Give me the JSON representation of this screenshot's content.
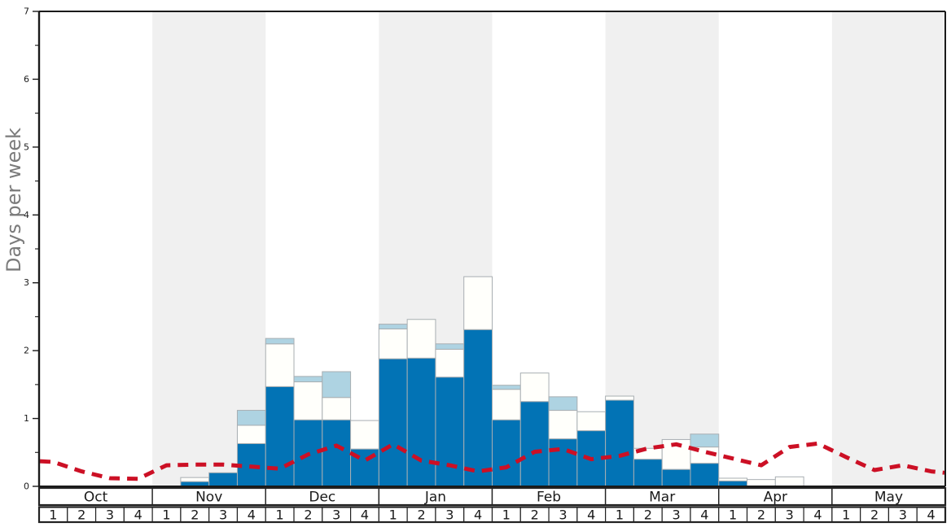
{
  "chart_data": {
    "type": "bar",
    "title": "",
    "ylabel": "Days per week",
    "ylim": [
      0,
      7
    ],
    "y_tick_labels": [
      "0",
      "1",
      "2",
      "3",
      "4",
      "5",
      "6",
      "7"
    ],
    "y_minor_step": 0.5,
    "grid": false,
    "legend": "none",
    "months": [
      "Oct",
      "Nov",
      "Dec",
      "Jan",
      "Feb",
      "Mar",
      "Apr",
      "May"
    ],
    "weeks_per_month": [
      "1",
      "2",
      "3",
      "4"
    ],
    "shaded_months": [
      "Nov",
      "Jan",
      "Mar",
      "May"
    ],
    "categories": [
      "Oct1",
      "Oct2",
      "Oct3",
      "Oct4",
      "Nov1",
      "Nov2",
      "Nov3",
      "Nov4",
      "Dec1",
      "Dec2",
      "Dec3",
      "Dec4",
      "Jan1",
      "Jan2",
      "Jan3",
      "Jan4",
      "Feb1",
      "Feb2",
      "Feb3",
      "Feb4",
      "Mar1",
      "Mar2",
      "Mar3",
      "Mar4",
      "Apr1",
      "Apr2",
      "Apr3",
      "Apr4",
      "May1",
      "May2",
      "May3",
      "May4"
    ],
    "series": [
      {
        "name": "snowy-days-dark-blue",
        "color": "#0273b5",
        "values": [
          0,
          0,
          0,
          0,
          0,
          0.07,
          0.2,
          0.63,
          1.47,
          0.98,
          0.98,
          0.55,
          1.88,
          1.89,
          1.61,
          2.31,
          0.98,
          1.25,
          0.7,
          0.82,
          1.27,
          0.4,
          0.25,
          0.34,
          0.08,
          0,
          0,
          0,
          0,
          0,
          0,
          0
        ]
      },
      {
        "name": "snowy-days-white",
        "color": "#fffffb",
        "values": [
          0,
          0,
          0,
          0,
          0,
          0.06,
          0,
          0.27,
          0.63,
          0.56,
          0.33,
          0.42,
          0.44,
          0.57,
          0.41,
          0.78,
          0.45,
          0.42,
          0.42,
          0.28,
          0.06,
          0.16,
          0.44,
          0.24,
          0.04,
          0.1,
          0.14,
          0,
          0,
          0,
          0,
          0
        ]
      },
      {
        "name": "snowy-days-light-blue",
        "color": "#aed3e2",
        "values": [
          0,
          0,
          0,
          0,
          0,
          0,
          0,
          0.22,
          0.08,
          0.08,
          0.38,
          0,
          0.07,
          0,
          0.08,
          0,
          0.06,
          0,
          0.2,
          0,
          0,
          0,
          0,
          0.19,
          0,
          0,
          0,
          0,
          0,
          0,
          0,
          0
        ]
      }
    ],
    "line_series": {
      "name": "average-line",
      "style": "dashed",
      "color": "#cc1025",
      "values": [
        0.36,
        0.22,
        0.12,
        0.11,
        0.31,
        0.32,
        0.32,
        0.29,
        0.26,
        0.47,
        0.6,
        0.38,
        0.62,
        0.38,
        0.31,
        0.22,
        0.28,
        0.51,
        0.55,
        0.4,
        0.45,
        0.56,
        0.62,
        0.51,
        0.41,
        0.31,
        0.58,
        0.63,
        0.43,
        0.24,
        0.31,
        0.22
      ],
      "edge_start_value": 0.37,
      "edge_end_value": 0.2
    }
  },
  "colors": {
    "band_shaded": "#f0f0f0",
    "band_plain": "#ffffff",
    "bar_border": "#a8aeb2",
    "axis": "#1a1a1a",
    "tick_label": "#1a1a1a",
    "table_border": "#222222",
    "table_fill": "#ffffff",
    "ylabel_color": "#7b7b7b"
  }
}
